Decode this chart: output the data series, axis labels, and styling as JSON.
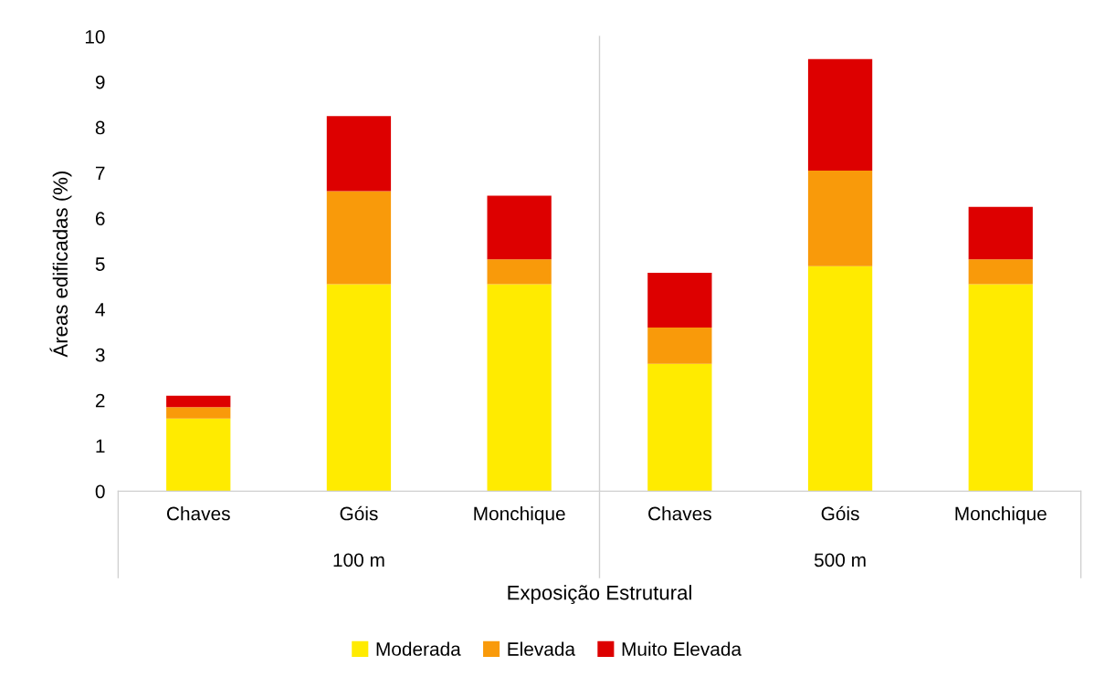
{
  "chart_data": {
    "type": "bar",
    "stacked": true,
    "xlabel": "Exposição Estrutural",
    "ylabel": "Áreas edificadas (%)",
    "categories": [
      "Chaves",
      "Góis",
      "Monchique",
      "Chaves",
      "Góis",
      "Monchique"
    ],
    "series": [
      {
        "name": "Moderada",
        "color": "#ffeb00",
        "values": [
          1.6,
          4.55,
          4.55,
          2.8,
          4.95,
          4.55
        ]
      },
      {
        "name": "Elevada",
        "color": "#f99a0a",
        "values": [
          0.25,
          2.05,
          0.55,
          0.8,
          2.1,
          0.55
        ]
      },
      {
        "name": "Muito Elevada",
        "color": "#dd0000",
        "values": [
          0.25,
          1.65,
          1.4,
          1.2,
          2.45,
          1.15
        ]
      }
    ],
    "annotations": [
      "100 m",
      "500 m"
    ],
    "ylim": [
      0,
      10
    ],
    "yticks": [
      0,
      1,
      2,
      3,
      4,
      5,
      6,
      7,
      8,
      9,
      10
    ],
    "grid": false,
    "legend": "bottom"
  }
}
